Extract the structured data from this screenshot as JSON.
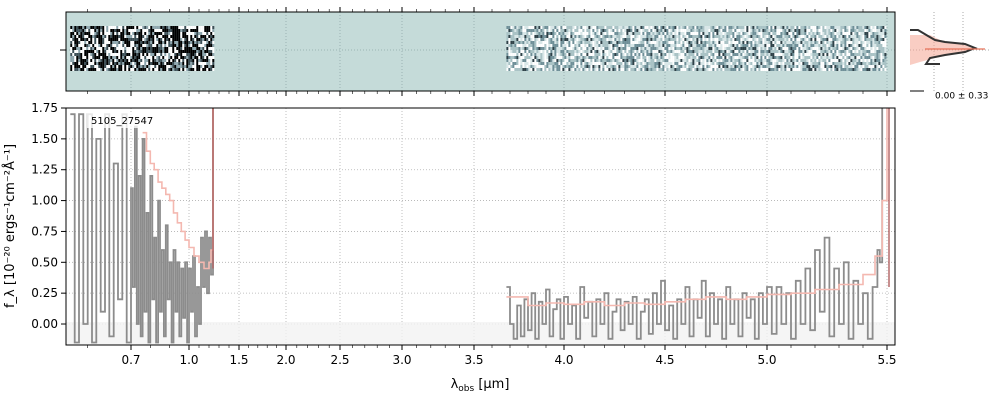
{
  "chart_data": [
    {
      "type": "heatmap",
      "panel": "2d-spectrum",
      "description_colors": {
        "background": "#c5dbd9",
        "dark": "#000000",
        "mid": "#6f8f98",
        "light": "#ffffff"
      },
      "coverage_um": [
        [
          0.55,
          1.25
        ],
        [
          3.68,
          5.49
        ]
      ]
    },
    {
      "type": "line",
      "panel": "profile",
      "label": "0.00 ± 0.33",
      "colors": {
        "fill": "#f4a492",
        "line": "#333333",
        "model": "#e8735a"
      }
    },
    {
      "type": "line",
      "panel": "1d-spectrum",
      "annotation": "5105_27547",
      "xlabel_main": "λ",
      "xlabel_sub": "obs",
      "xlabel_unit": " [μm]",
      "ylabel": "f_λ [10⁻²⁰ ergs⁻¹cm⁻²Å⁻¹]",
      "xscale": "piecewise (compressed non-linear wavelength axis)",
      "xlim": [
        0.55,
        5.52
      ],
      "ylim": [
        -0.17,
        1.75
      ],
      "xticks": [
        {
          "v": 0.7,
          "label": "0.7"
        },
        {
          "v": 1.0,
          "label": "1.0"
        },
        {
          "v": 1.5,
          "label": "1.5"
        },
        {
          "v": 2.0,
          "label": "2.0"
        },
        {
          "v": 2.5,
          "label": "2.5"
        },
        {
          "v": 3.0,
          "label": "3.0"
        },
        {
          "v": 3.5,
          "label": "3.5"
        },
        {
          "v": 4.0,
          "label": "4.0"
        },
        {
          "v": 4.5,
          "label": "4.5"
        },
        {
          "v": 5.0,
          "label": "5.0"
        },
        {
          "v": 5.5,
          "label": "5.5"
        }
      ],
      "yticks": [
        {
          "v": 0.0,
          "label": "0.00"
        },
        {
          "v": 0.25,
          "label": "0.25"
        },
        {
          "v": 0.5,
          "label": "0.50"
        },
        {
          "v": 0.75,
          "label": "0.75"
        },
        {
          "v": 1.0,
          "label": "1.00"
        },
        {
          "v": 1.25,
          "label": "1.25"
        },
        {
          "v": 1.5,
          "label": "1.50"
        },
        {
          "v": 1.75,
          "label": "1.75"
        }
      ],
      "grid": true,
      "series": [
        {
          "role": "data",
          "color": "#8c8c8c",
          "segments": [
            [
              [
                0.56,
                1.7
              ],
              [
                0.57,
                -0.15
              ],
              [
                0.58,
                1.7
              ],
              [
                0.59,
                0.0
              ],
              [
                0.6,
                1.7
              ],
              [
                0.61,
                -0.15
              ],
              [
                0.62,
                1.5
              ],
              [
                0.63,
                0.1
              ],
              [
                0.64,
                1.7
              ],
              [
                0.65,
                -0.1
              ],
              [
                0.66,
                1.3
              ],
              [
                0.67,
                0.2
              ],
              [
                0.68,
                1.7
              ],
              [
                0.69,
                -0.15
              ],
              [
                0.7,
                1.1
              ],
              [
                0.71,
                0.3
              ],
              [
                0.72,
                1.6
              ],
              [
                0.73,
                0.0
              ],
              [
                0.74,
                1.2
              ],
              [
                0.75,
                -0.1
              ],
              [
                0.76,
                1.5
              ],
              [
                0.77,
                0.1
              ],
              [
                0.78,
                0.9
              ],
              [
                0.79,
                -0.15
              ],
              [
                0.8,
                1.2
              ],
              [
                0.81,
                0.2
              ],
              [
                0.82,
                0.7
              ],
              [
                0.83,
                -0.15
              ],
              [
                0.84,
                1.0
              ],
              [
                0.85,
                0.1
              ],
              [
                0.86,
                0.6
              ],
              [
                0.87,
                -0.1
              ],
              [
                0.88,
                0.8
              ],
              [
                0.89,
                0.2
              ],
              [
                0.9,
                0.5
              ],
              [
                0.91,
                -0.15
              ],
              [
                0.92,
                0.6
              ],
              [
                0.93,
                0.1
              ],
              [
                0.94,
                0.5
              ],
              [
                0.95,
                -0.1
              ],
              [
                0.96,
                0.45
              ],
              [
                0.97,
                0.05
              ],
              [
                0.98,
                0.5
              ],
              [
                0.99,
                -0.15
              ],
              [
                1.0,
                0.45
              ],
              [
                1.02,
                0.1
              ],
              [
                1.04,
                0.55
              ],
              [
                1.06,
                -0.1
              ],
              [
                1.08,
                0.3
              ],
              [
                1.1,
                0.0
              ],
              [
                1.12,
                0.7
              ],
              [
                1.14,
                0.3
              ],
              [
                1.16,
                0.75
              ],
              [
                1.18,
                0.25
              ],
              [
                1.2,
                0.7
              ],
              [
                1.22,
                0.4
              ],
              [
                1.24,
                1.75
              ]
            ],
            [
              [
                3.68,
                0.3
              ],
              [
                3.7,
                0.0
              ],
              [
                3.72,
                -0.12
              ],
              [
                3.74,
                0.15
              ],
              [
                3.76,
                -0.1
              ],
              [
                3.78,
                0.2
              ],
              [
                3.8,
                -0.05
              ],
              [
                3.82,
                0.25
              ],
              [
                3.84,
                -0.12
              ],
              [
                3.86,
                0.18
              ],
              [
                3.88,
                0.0
              ],
              [
                3.9,
                0.28
              ],
              [
                3.92,
                -0.1
              ],
              [
                3.94,
                0.12
              ],
              [
                3.96,
                0.2
              ],
              [
                3.98,
                -0.12
              ],
              [
                4.0,
                0.22
              ],
              [
                4.02,
                0.0
              ],
              [
                4.04,
                0.15
              ],
              [
                4.06,
                -0.12
              ],
              [
                4.08,
                0.3
              ],
              [
                4.1,
                0.05
              ],
              [
                4.12,
                0.18
              ],
              [
                4.14,
                -0.1
              ],
              [
                4.16,
                0.2
              ],
              [
                4.18,
                0.0
              ],
              [
                4.2,
                0.25
              ],
              [
                4.22,
                -0.12
              ],
              [
                4.24,
                0.1
              ],
              [
                4.26,
                0.2
              ],
              [
                4.28,
                -0.05
              ],
              [
                4.3,
                0.18
              ],
              [
                4.32,
                0.0
              ],
              [
                4.34,
                0.22
              ],
              [
                4.36,
                -0.12
              ],
              [
                4.38,
                0.1
              ],
              [
                4.4,
                0.2
              ],
              [
                4.42,
                -0.08
              ],
              [
                4.44,
                0.25
              ],
              [
                4.46,
                0.0
              ],
              [
                4.48,
                0.35
              ],
              [
                4.5,
                -0.05
              ],
              [
                4.52,
                0.15
              ],
              [
                4.54,
                -0.12
              ],
              [
                4.56,
                0.2
              ],
              [
                4.58,
                0.0
              ],
              [
                4.6,
                0.3
              ],
              [
                4.62,
                -0.1
              ],
              [
                4.64,
                0.2
              ],
              [
                4.66,
                0.05
              ],
              [
                4.68,
                0.35
              ],
              [
                4.7,
                -0.1
              ],
              [
                4.72,
                0.25
              ],
              [
                4.74,
                0.0
              ],
              [
                4.76,
                0.2
              ],
              [
                4.78,
                -0.12
              ],
              [
                4.8,
                0.3
              ],
              [
                4.82,
                0.0
              ],
              [
                4.84,
                0.2
              ],
              [
                4.86,
                -0.1
              ],
              [
                4.88,
                0.25
              ],
              [
                4.9,
                0.05
              ],
              [
                4.92,
                0.2
              ],
              [
                4.94,
                -0.12
              ],
              [
                4.96,
                0.25
              ],
              [
                4.98,
                0.0
              ],
              [
                5.0,
                0.3
              ],
              [
                5.02,
                -0.08
              ],
              [
                5.04,
                0.3
              ],
              [
                5.06,
                0.0
              ],
              [
                5.08,
                0.25
              ],
              [
                5.1,
                -0.12
              ],
              [
                5.12,
                0.35
              ],
              [
                5.14,
                0.0
              ],
              [
                5.16,
                0.45
              ],
              [
                5.18,
                -0.05
              ],
              [
                5.2,
                0.6
              ],
              [
                5.22,
                0.1
              ],
              [
                5.24,
                0.7
              ],
              [
                5.26,
                -0.1
              ],
              [
                5.28,
                0.45
              ],
              [
                5.3,
                0.0
              ],
              [
                5.32,
                0.5
              ],
              [
                5.34,
                -0.12
              ],
              [
                5.36,
                0.35
              ],
              [
                5.38,
                0.0
              ],
              [
                5.4,
                0.25
              ],
              [
                5.42,
                -0.12
              ],
              [
                5.44,
                0.3
              ],
              [
                5.46,
                0.6
              ],
              [
                5.47,
                0.5
              ],
              [
                5.48,
                1.75
              ]
            ]
          ]
        },
        {
          "role": "model",
          "color": "#f4b8b0",
          "segments": [
            [
              [
                0.76,
                1.55
              ],
              [
                0.78,
                1.4
              ],
              [
                0.8,
                1.3
              ],
              [
                0.82,
                1.25
              ],
              [
                0.84,
                1.15
              ],
              [
                0.86,
                1.1
              ],
              [
                0.88,
                1.05
              ],
              [
                0.9,
                1.0
              ],
              [
                0.92,
                0.9
              ],
              [
                0.94,
                0.82
              ],
              [
                0.96,
                0.75
              ],
              [
                0.98,
                0.68
              ],
              [
                1.0,
                0.62
              ],
              [
                1.05,
                0.55
              ],
              [
                1.1,
                0.5
              ],
              [
                1.15,
                0.45
              ],
              [
                1.2,
                0.5
              ],
              [
                1.22,
                0.6
              ],
              [
                1.24,
                1.75
              ]
            ],
            [
              [
                3.68,
                0.22
              ],
              [
                3.8,
                0.15
              ],
              [
                3.9,
                0.17
              ],
              [
                4.0,
                0.16
              ],
              [
                4.1,
                0.18
              ],
              [
                4.2,
                0.15
              ],
              [
                4.3,
                0.17
              ],
              [
                4.4,
                0.16
              ],
              [
                4.5,
                0.18
              ],
              [
                4.6,
                0.2
              ],
              [
                4.7,
                0.22
              ],
              [
                4.8,
                0.2
              ],
              [
                4.9,
                0.22
              ],
              [
                5.0,
                0.24
              ],
              [
                5.1,
                0.25
              ],
              [
                5.2,
                0.28
              ],
              [
                5.3,
                0.32
              ],
              [
                5.4,
                0.4
              ],
              [
                5.45,
                0.55
              ],
              [
                5.48,
                1.0
              ],
              [
                5.5,
                1.75
              ]
            ]
          ]
        }
      ]
    }
  ]
}
